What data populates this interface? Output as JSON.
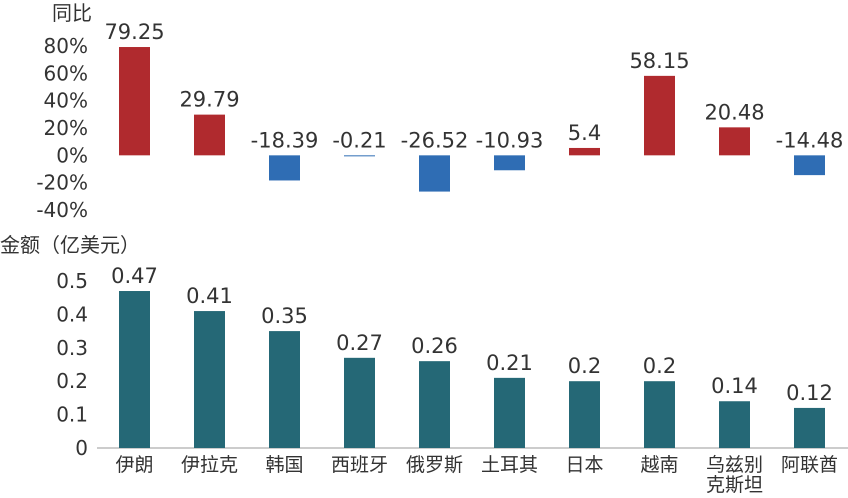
{
  "chart_data": [
    {
      "type": "bar",
      "title": "",
      "ylabel": "同比",
      "ylabel_suffix": "%",
      "categories": [
        "伊朗",
        "伊拉克",
        "韩国",
        "西班牙",
        "俄罗斯",
        "土耳其",
        "日本",
        "越南",
        "乌兹别克斯坦",
        "阿联酋"
      ],
      "values": [
        79.25,
        29.79,
        -18.39,
        -0.21,
        -26.52,
        -10.93,
        5.4,
        58.15,
        20.48,
        -14.48
      ],
      "value_labels": [
        "79.25",
        "29.79",
        "-18.39",
        "-0.21",
        "-26.52",
        "-10.93",
        "5.4",
        "58.15",
        "20.48",
        "-14.48"
      ],
      "yticks": [
        "80%",
        "60%",
        "40%",
        "20%",
        "0%",
        "-20%",
        "-40%"
      ],
      "ytick_values": [
        80,
        60,
        40,
        20,
        0,
        -20,
        -40
      ],
      "ylim": [
        -40,
        80
      ],
      "grid": false,
      "colors": {
        "positive": "#b02a2e",
        "negative": "#2f6db4"
      }
    },
    {
      "type": "bar",
      "title": "",
      "ylabel": "金额（亿美元）",
      "categories": [
        "伊朗",
        "伊拉克",
        "韩国",
        "西班牙",
        "俄罗斯",
        "土耳其",
        "日本",
        "越南",
        "乌兹别克斯坦",
        "阿联酋"
      ],
      "category_lines": [
        [
          "伊朗"
        ],
        [
          "伊拉克"
        ],
        [
          "韩国"
        ],
        [
          "西班牙"
        ],
        [
          "俄罗斯"
        ],
        [
          "土耳其"
        ],
        [
          "日本"
        ],
        [
          "越南"
        ],
        [
          "乌兹别",
          "克斯坦"
        ],
        [
          "阿联酋"
        ]
      ],
      "values": [
        0.47,
        0.41,
        0.35,
        0.27,
        0.26,
        0.21,
        0.2,
        0.2,
        0.14,
        0.12
      ],
      "value_labels": [
        "0.47",
        "0.41",
        "0.35",
        "0.27",
        "0.26",
        "0.21",
        "0.2",
        "0.2",
        "0.14",
        "0.12"
      ],
      "yticks": [
        "0.5",
        "0.4",
        "0.3",
        "0.2",
        "0.1",
        "0"
      ],
      "ytick_values": [
        0.5,
        0.4,
        0.3,
        0.2,
        0.1,
        0
      ],
      "ylim": [
        0,
        0.5
      ],
      "grid": false,
      "colors": {
        "bar": "#256876",
        "axis": "#999999"
      }
    }
  ]
}
